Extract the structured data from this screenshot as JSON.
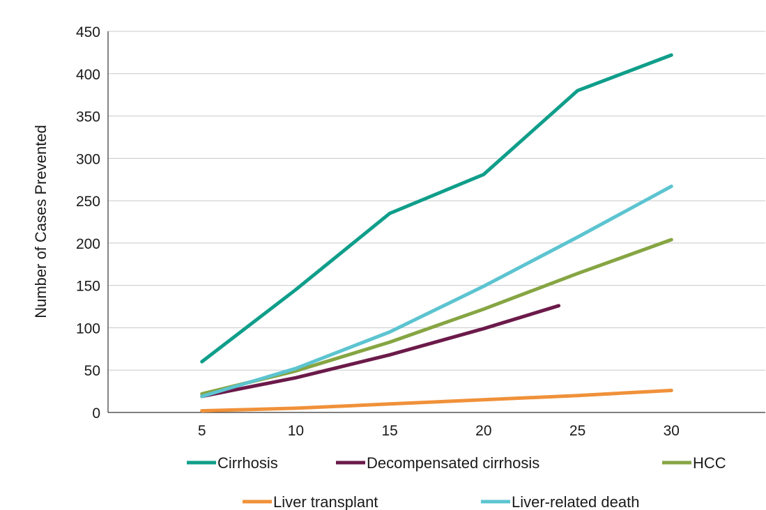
{
  "chart_data": {
    "type": "line",
    "title": "",
    "xlabel": "",
    "ylabel": "Number of Cases Prevented",
    "x": [
      5,
      10,
      15,
      20,
      25,
      30
    ],
    "xlim": [
      0,
      35
    ],
    "ylim": [
      0,
      450
    ],
    "yticks": [
      0,
      50,
      100,
      150,
      200,
      250,
      300,
      350,
      400,
      450
    ],
    "xticks": [
      5,
      10,
      15,
      20,
      25,
      30
    ],
    "grid": "horizontal",
    "legend_position": "bottom",
    "series": [
      {
        "name": "Cirrhosis",
        "color": "#0f9e8a",
        "points": [
          [
            5,
            60
          ],
          [
            10,
            145
          ],
          [
            15,
            235
          ],
          [
            20,
            281
          ],
          [
            25,
            380
          ],
          [
            30,
            422
          ]
        ]
      },
      {
        "name": "Decompensated cirrhosis",
        "color": "#6b1a4a",
        "points": [
          [
            5,
            19
          ],
          [
            10,
            41
          ],
          [
            15,
            68
          ],
          [
            20,
            99
          ],
          [
            24,
            126
          ]
        ]
      },
      {
        "name": "HCC",
        "color": "#86a543",
        "points": [
          [
            5,
            22
          ],
          [
            10,
            49
          ],
          [
            15,
            83
          ],
          [
            20,
            122
          ],
          [
            25,
            164
          ],
          [
            30,
            204
          ]
        ]
      },
      {
        "name": "Liver transplant",
        "color": "#f0913a",
        "points": [
          [
            5,
            2
          ],
          [
            10,
            5
          ],
          [
            15,
            10
          ],
          [
            20,
            15
          ],
          [
            25,
            20
          ],
          [
            30,
            26
          ]
        ]
      },
      {
        "name": "Liver-related death",
        "color": "#5cc4d0",
        "points": [
          [
            5,
            19
          ],
          [
            10,
            52
          ],
          [
            15,
            95
          ],
          [
            20,
            149
          ],
          [
            25,
            207
          ],
          [
            30,
            267
          ]
        ]
      }
    ]
  }
}
